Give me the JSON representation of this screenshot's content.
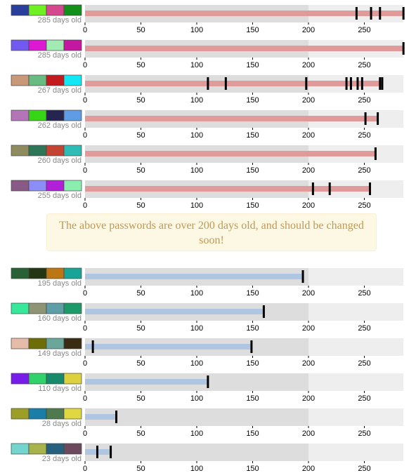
{
  "warning": {
    "text": "The above passwords are over 200 days old, and should be changed soon!"
  },
  "chart_colors": {
    "old_bar": "#e09a9a",
    "new_bar": "#afc6e3",
    "track_dark": "#dddddd",
    "track_light": "#eeeeee",
    "marker": "#000000",
    "tick_text": "#000000",
    "age_text": "#888888"
  },
  "chart_data": [
    {
      "type": "bar",
      "age_label": "285 days old",
      "value": 285,
      "markers": [
        243,
        256,
        264,
        285
      ],
      "swatches": [
        "#2a3f9c",
        "#6ef022",
        "#d4488e",
        "#12901a"
      ],
      "xlim": [
        0,
        285
      ],
      "xticks": [
        "0",
        "50",
        "100",
        "150",
        "200",
        "250"
      ]
    },
    {
      "type": "bar",
      "age_label": "285 days old",
      "value": 285,
      "markers": [
        285
      ],
      "swatches": [
        "#7259f0",
        "#dc18d2",
        "#a2ecb4",
        "#c418a2"
      ],
      "xlim": [
        0,
        285
      ],
      "xticks": [
        "0",
        "50",
        "100",
        "150",
        "200",
        "250"
      ]
    },
    {
      "type": "bar",
      "age_label": "267 days old",
      "value": 267,
      "markers": [
        110,
        126,
        198,
        234,
        238,
        244,
        248,
        264,
        266
      ],
      "swatches": [
        "#c89878",
        "#68bc82",
        "#c21a1e",
        "#12e8f4"
      ],
      "xlim": [
        0,
        285
      ],
      "xticks": [
        "0",
        "50",
        "100",
        "150",
        "200",
        "250"
      ]
    },
    {
      "type": "bar",
      "age_label": "262 days old",
      "value": 262,
      "markers": [
        251,
        262
      ],
      "swatches": [
        "#b474b8",
        "#36d616",
        "#262450",
        "#5e9ce6"
      ],
      "xlim": [
        0,
        285
      ],
      "xticks": [
        "0",
        "50",
        "100",
        "150",
        "200",
        "250"
      ]
    },
    {
      "type": "bar",
      "age_label": "260 days old",
      "value": 260,
      "markers": [
        260
      ],
      "swatches": [
        "#8e8c5e",
        "#2e7658",
        "#c44434",
        "#2ebcb6"
      ],
      "xlim": [
        0,
        285
      ],
      "xticks": [
        "0",
        "50",
        "100",
        "150",
        "200",
        "250"
      ]
    },
    {
      "type": "bar",
      "age_label": "255 days old",
      "value": 255,
      "markers": [
        204,
        219,
        255
      ],
      "swatches": [
        "#8a5a86",
        "#8c8ef6",
        "#b020d8",
        "#8aeeb0"
      ],
      "xlim": [
        0,
        285
      ],
      "xticks": [
        "0",
        "50",
        "100",
        "150",
        "200",
        "250"
      ]
    },
    {
      "type": "bar",
      "age_label": "195 days old",
      "value": 195,
      "markers": [
        195
      ],
      "swatches": [
        "#276236",
        "#233812",
        "#bd7614",
        "#18a496"
      ],
      "xlim": [
        0,
        285
      ],
      "xticks": [
        "0",
        "50",
        "100",
        "150",
        "200",
        "250"
      ]
    },
    {
      "type": "bar",
      "age_label": "160 days old",
      "value": 160,
      "markers": [
        160
      ],
      "swatches": [
        "#36e89a",
        "#8e9474",
        "#5e9ea6",
        "#1c9a68"
      ],
      "xlim": [
        0,
        285
      ],
      "xticks": [
        "0",
        "50",
        "100",
        "150",
        "200",
        "250"
      ]
    },
    {
      "type": "bar",
      "age_label": "149 days old",
      "value": 149,
      "markers": [
        7,
        149
      ],
      "swatches": [
        "#e6bca8",
        "#6e6e08",
        "#6aa69a",
        "#3a2c12"
      ],
      "xlim": [
        0,
        285
      ],
      "xticks": [
        "0",
        "50",
        "100",
        "150",
        "200",
        "250"
      ]
    },
    {
      "type": "bar",
      "age_label": "110 days old",
      "value": 110,
      "markers": [
        110
      ],
      "swatches": [
        "#781cea",
        "#32d26a",
        "#168a6a",
        "#dcd240"
      ],
      "xlim": [
        0,
        285
      ],
      "xticks": [
        "0",
        "50",
        "100",
        "150",
        "200",
        "250"
      ]
    },
    {
      "type": "bar",
      "age_label": "28 days old",
      "value": 28,
      "markers": [
        28
      ],
      "swatches": [
        "#9c9e26",
        "#1a7ea8",
        "#4e7a4e",
        "#e0d840"
      ],
      "xlim": [
        0,
        285
      ],
      "xticks": [
        "0",
        "50",
        "100",
        "150",
        "200",
        "250"
      ]
    },
    {
      "type": "bar",
      "age_label": "23 days old",
      "value": 23,
      "markers": [
        11,
        23
      ],
      "swatches": [
        "#72d6ce",
        "#a8b44a",
        "#26607e",
        "#6c4a5e"
      ],
      "xlim": [
        0,
        285
      ],
      "xticks": [
        "0",
        "50",
        "100",
        "150",
        "200",
        "250"
      ]
    }
  ]
}
